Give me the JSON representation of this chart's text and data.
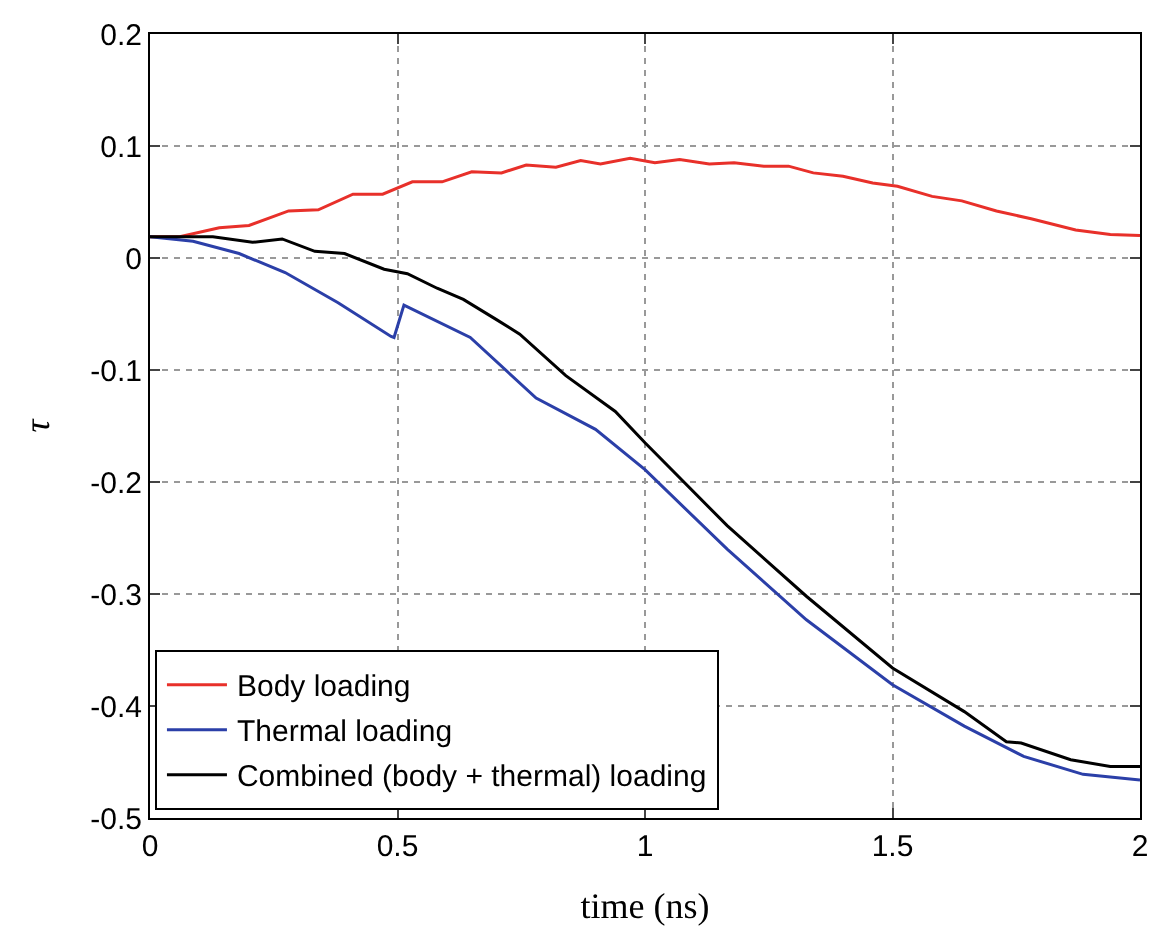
{
  "chart_data": {
    "type": "line",
    "xlabel": "time (ns)",
    "ylabel": "τ",
    "xlim": [
      0,
      2
    ],
    "ylim": [
      -0.5,
      0.2
    ],
    "xticks": [
      0,
      0.5,
      1,
      1.5,
      2
    ],
    "yticks": [
      -0.5,
      -0.4,
      -0.3,
      -0.2,
      -0.1,
      0,
      0.1,
      0.2
    ],
    "grid": true,
    "legend": "bottom left",
    "marker": "none",
    "line_style": "solid",
    "series": [
      {
        "name": "Body loading",
        "color": "#e8302a",
        "x": [
          0,
          0.06,
          0.14,
          0.2,
          0.28,
          0.34,
          0.41,
          0.47,
          0.53,
          0.59,
          0.65,
          0.71,
          0.76,
          0.82,
          0.87,
          0.91,
          0.97,
          1.02,
          1.07,
          1.13,
          1.18,
          1.24,
          1.29,
          1.34,
          1.4,
          1.46,
          1.51,
          1.58,
          1.64,
          1.71,
          1.78,
          1.87,
          1.94,
          2.0
        ],
        "values": [
          0.019,
          0.019,
          0.027,
          0.029,
          0.042,
          0.043,
          0.057,
          0.057,
          0.068,
          0.068,
          0.077,
          0.076,
          0.083,
          0.081,
          0.087,
          0.084,
          0.089,
          0.085,
          0.088,
          0.084,
          0.085,
          0.082,
          0.082,
          0.076,
          0.073,
          0.067,
          0.064,
          0.055,
          0.051,
          0.042,
          0.035,
          0.025,
          0.021,
          0.02
        ]
      },
      {
        "name": "Thermal loading",
        "color": "#2b3fa8",
        "x": [
          0,
          0.087,
          0.18,
          0.273,
          0.38,
          0.487,
          0.493,
          0.513,
          0.647,
          0.78,
          0.9,
          1.0,
          1.166,
          1.326,
          1.5,
          1.645,
          1.765,
          1.885,
          2.0
        ],
        "values": [
          0.019,
          0.015,
          0.004,
          -0.013,
          -0.04,
          -0.07,
          -0.071,
          -0.042,
          -0.071,
          -0.125,
          -0.153,
          -0.189,
          -0.26,
          -0.323,
          -0.381,
          -0.418,
          -0.445,
          -0.461,
          -0.466
        ]
      },
      {
        "name": "Combined (body + thermal) loading",
        "color": "#000000",
        "x": [
          0,
          0.127,
          0.207,
          0.267,
          0.333,
          0.393,
          0.473,
          0.52,
          0.58,
          0.633,
          0.7,
          0.747,
          0.84,
          0.94,
          1.0,
          1.166,
          1.326,
          1.5,
          1.645,
          1.73,
          1.76,
          1.86,
          1.94,
          2.0
        ],
        "values": [
          0.019,
          0.019,
          0.014,
          0.017,
          0.006,
          0.004,
          -0.01,
          -0.014,
          -0.027,
          -0.037,
          -0.055,
          -0.068,
          -0.105,
          -0.137,
          -0.165,
          -0.239,
          -0.302,
          -0.366,
          -0.405,
          -0.432,
          -0.433,
          -0.448,
          -0.454,
          -0.454
        ]
      }
    ]
  }
}
